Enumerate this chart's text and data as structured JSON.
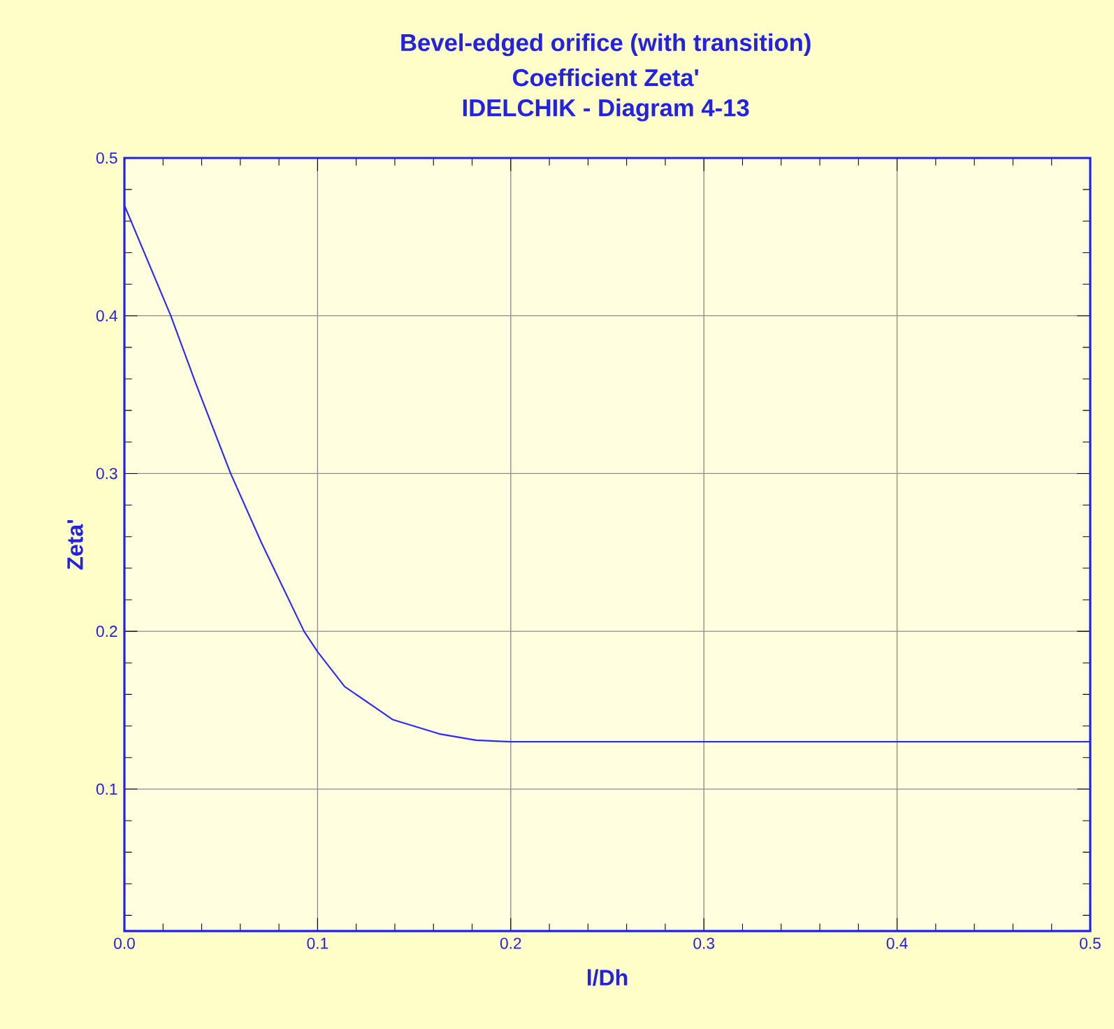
{
  "chart_data": {
    "type": "line",
    "title": "Bevel-edged orifice (with transition)",
    "subtitle": "Coefficient Zeta'",
    "annotations": [
      "IDELCHIK - Diagram 4-13"
    ],
    "xlabel": "l/Dh",
    "ylabel": "Zeta'",
    "series": [
      {
        "color": "#2a2aff",
        "x": [
          0,
          0.024,
          0.037,
          0.055,
          0.071,
          0.093,
          0.1,
          0.114,
          0.139,
          0.163,
          0.182,
          0.2,
          0.3,
          0.4,
          0.5
        ],
        "values": [
          0.47,
          0.4,
          0.357,
          0.3,
          0.256,
          0.2,
          0.187,
          0.165,
          0.144,
          0.135,
          0.131,
          0.13,
          0.13,
          0.13,
          0.13
        ]
      }
    ],
    "xlim": [
      0,
      0.5
    ],
    "ylim": [
      0.01,
      0.5
    ],
    "xticks": [
      {
        "value": 0,
        "label": "0.0"
      },
      0.1,
      0.2,
      0.3,
      0.4,
      0.5
    ],
    "yticks": [
      0.1,
      0.2,
      0.3,
      0.4,
      0.5
    ],
    "grid": true,
    "marker": "none",
    "line_style": "solid"
  }
}
